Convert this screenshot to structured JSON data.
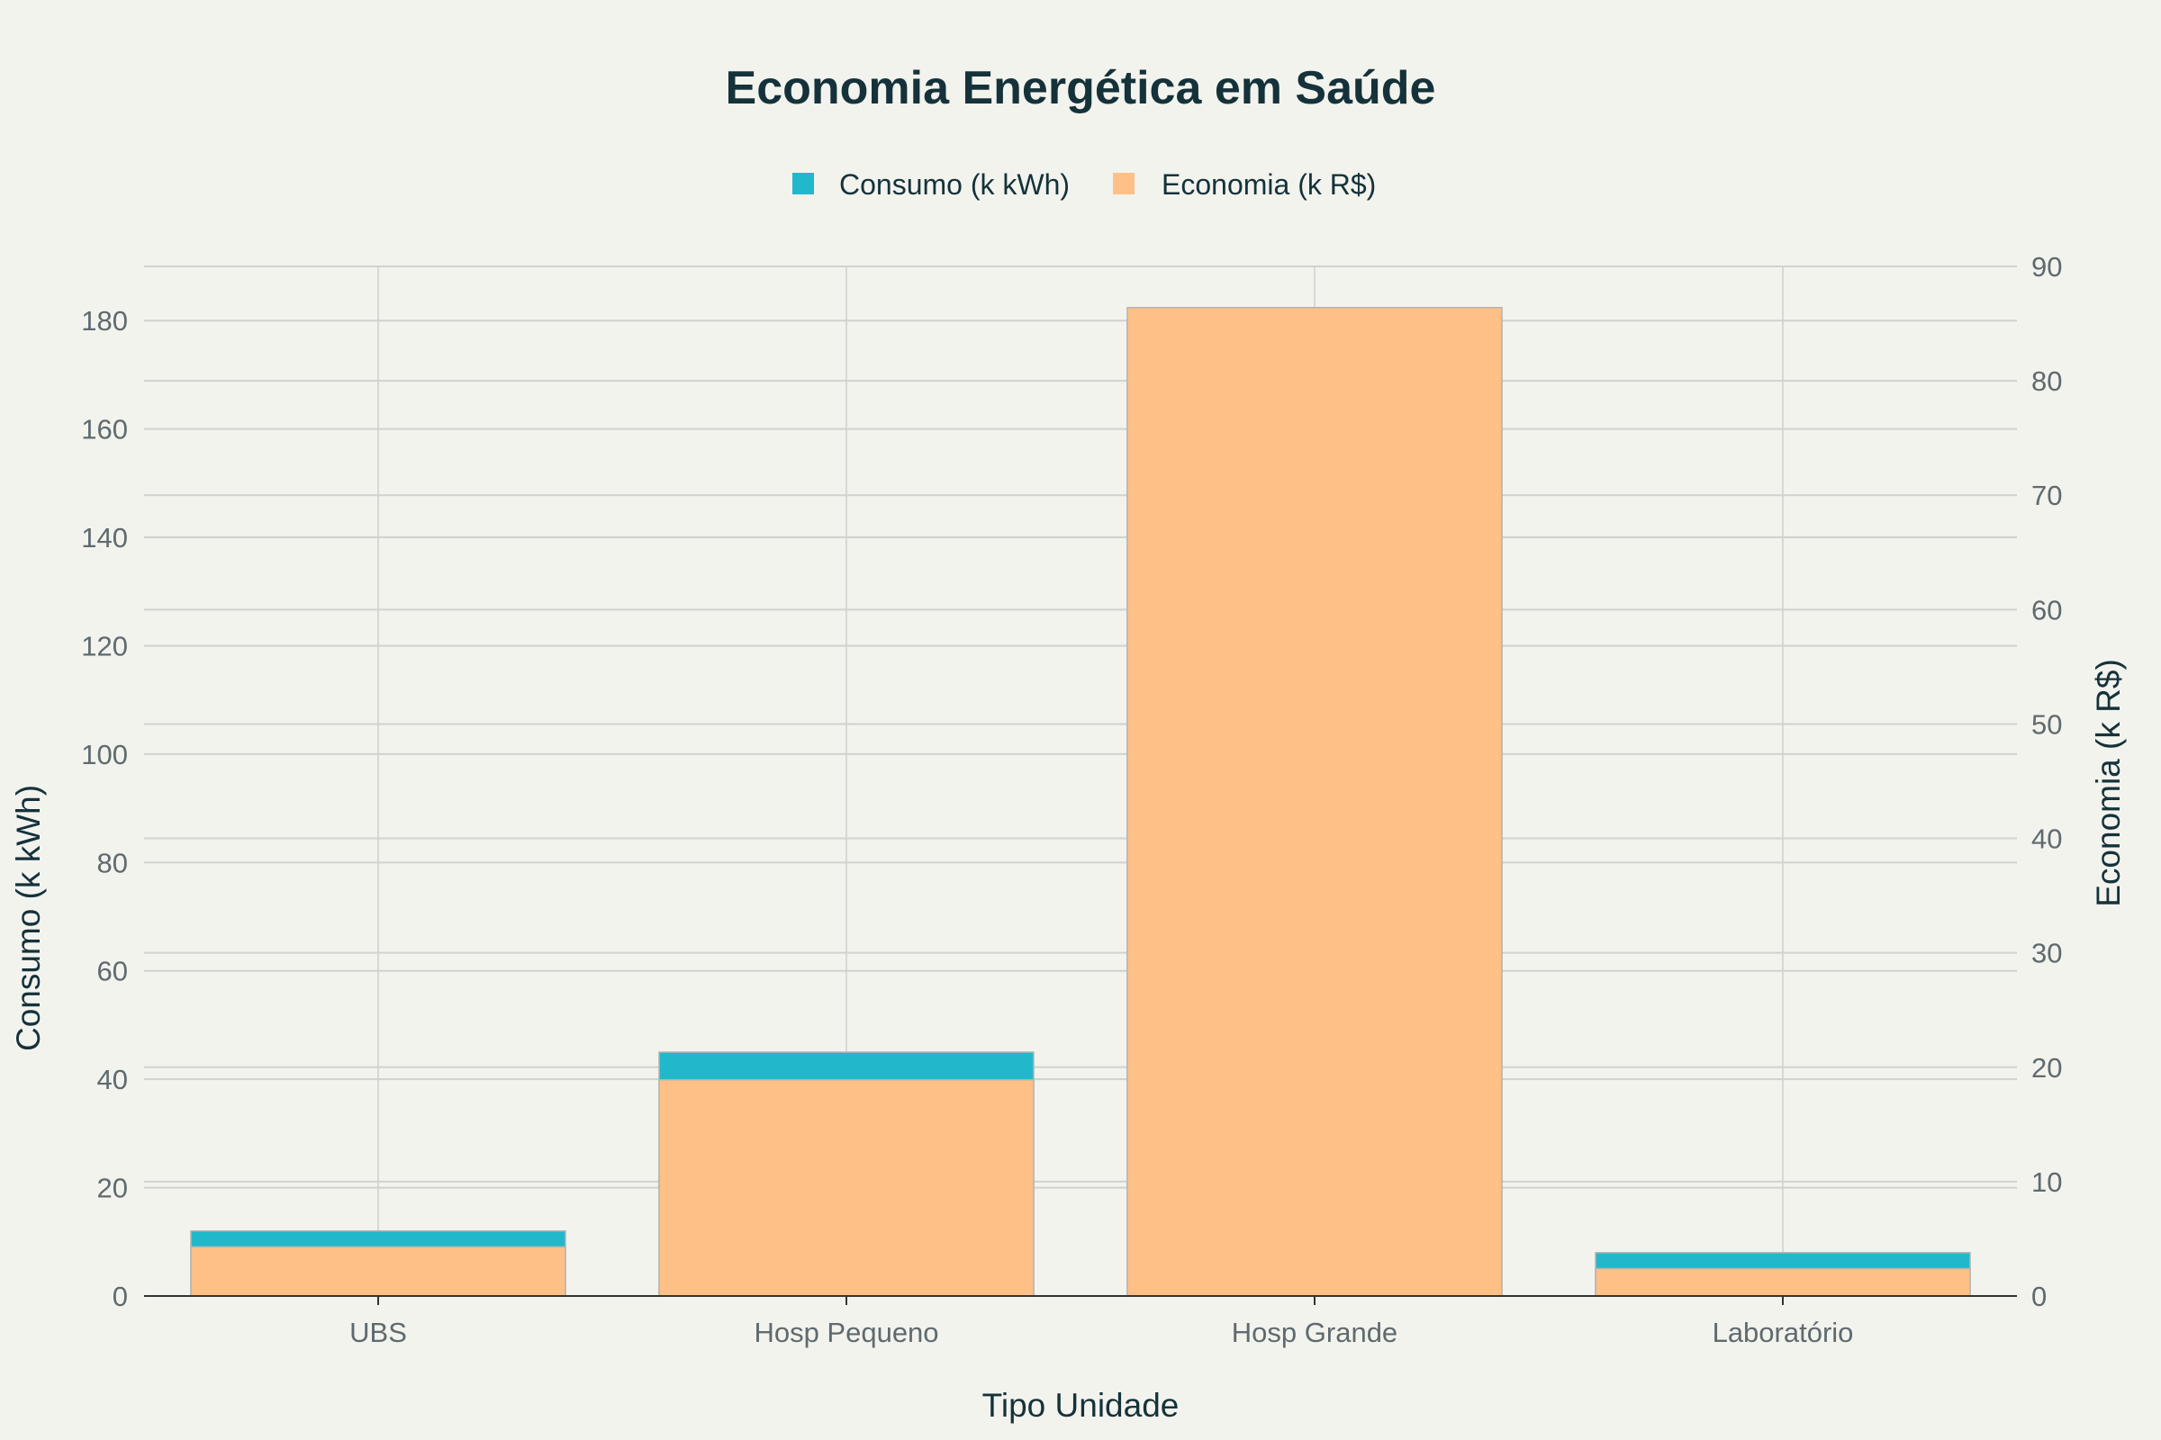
{
  "chart_data": {
    "type": "bar",
    "title": "Economia Energética em Saúde",
    "categories": [
      "UBS",
      "Hosp Pequeno",
      "Hosp Grande",
      "Laboratório"
    ],
    "xlabel": "Tipo Unidade",
    "ylabel": "Consumo (k kWh)",
    "y2label": "Economia (k R$)",
    "ylim": [
      0,
      190
    ],
    "y2lim": [
      0,
      90
    ],
    "yticks": [
      "0",
      "20",
      "40",
      "60",
      "80",
      "100",
      "120",
      "140",
      "160",
      "180"
    ],
    "y2ticks": [
      "0",
      "10",
      "20",
      "30",
      "40",
      "50",
      "60",
      "70",
      "80",
      "90"
    ],
    "series": [
      {
        "name": "Consumo (k kWh)",
        "axis": "left",
        "color": "#21b8cc",
        "values": [
          12,
          45,
          180,
          8
        ]
      },
      {
        "name": "Economia (k R$)",
        "axis": "right",
        "color": "#ffc087",
        "values": [
          4.3,
          18.9,
          86.4,
          2.4
        ]
      }
    ],
    "grid": true,
    "legend_position": "top-center"
  }
}
